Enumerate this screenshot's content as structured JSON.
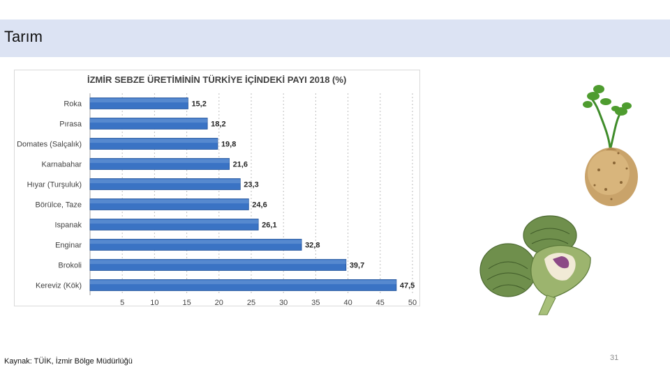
{
  "slide": {
    "title": "Tarım",
    "source": "Kaynak: TÜİK, İzmir Bölge Müdürlüğü",
    "page_number": "31"
  },
  "images": {
    "top": "celeriac-root-icon",
    "bottom": "artichoke-icon"
  },
  "colors": {
    "title_bar": "#dce3f3",
    "bar_fill": "#3a73c4",
    "bar_stroke": "#1f4f96"
  },
  "chart_data": {
    "type": "bar",
    "orientation": "horizontal",
    "title": "İZMİR SEBZE ÜRETİMİNİN TÜRKİYE İÇİNDEKİ PAYI 2018 (%)",
    "categories": [
      "Roka",
      "Pırasa",
      "Domates (Salçalık)",
      "Karnabahar",
      "Hıyar (Turşuluk)",
      "Börülce, Taze",
      "Ispanak",
      "Enginar",
      "Brokoli",
      "Kereviz (Kök)"
    ],
    "values": [
      15.2,
      18.2,
      19.8,
      21.6,
      23.3,
      24.6,
      26.1,
      32.8,
      39.7,
      47.5
    ],
    "value_labels": [
      "15,2",
      "18,2",
      "19,8",
      "21,6",
      "23,3",
      "24,6",
      "26,1",
      "32,8",
      "39,7",
      "47,5"
    ],
    "xlim": [
      0,
      50
    ],
    "xticks": [
      "5",
      "10",
      "15",
      "20",
      "25",
      "30",
      "35",
      "40",
      "45",
      "50"
    ],
    "xlabel": "",
    "ylabel": "",
    "grid": "vertical-dashed",
    "legend": "none"
  }
}
